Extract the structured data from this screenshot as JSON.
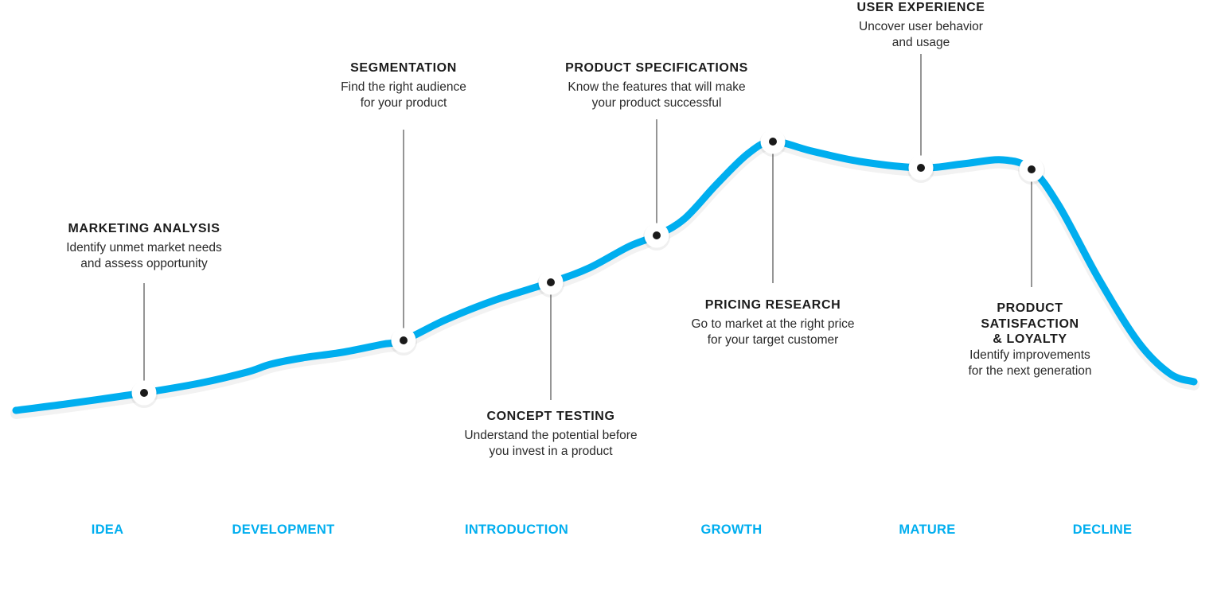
{
  "colors": {
    "curve": "#00aeef",
    "stage_label": "#00aeef",
    "text_dark": "#1c1c1c",
    "marker_dot": "#1a1a1a",
    "marker_halo": "#ffffff"
  },
  "milestones": [
    {
      "id": "marketing-analysis",
      "title": "MARKETING ANALYSIS",
      "desc_lines": [
        "Identify unmet market needs",
        "and assess opportunity"
      ]
    },
    {
      "id": "segmentation",
      "title": "SEGMENTATION",
      "desc_lines": [
        "Find the right audience",
        "for your product"
      ]
    },
    {
      "id": "concept-testing",
      "title": "CONCEPT TESTING",
      "desc_lines": [
        "Understand the potential before",
        "you invest in a product"
      ]
    },
    {
      "id": "product-specifications",
      "title": "PRODUCT SPECIFICATIONS",
      "desc_lines": [
        "Know the features that will make",
        "your product successful"
      ]
    },
    {
      "id": "pricing-research",
      "title": "PRICING RESEARCH",
      "desc_lines": [
        "Go to market at the right price",
        "for your target customer"
      ]
    },
    {
      "id": "user-experience",
      "title": "USER EXPERIENCE",
      "desc_lines": [
        "Uncover user behavior",
        "and usage"
      ]
    },
    {
      "id": "product-satisfaction",
      "title": "PRODUCT SATISFACTION & LOYALTY",
      "title_lines": [
        "PRODUCT",
        "SATISFACTION",
        "& LOYALTY"
      ],
      "desc_lines": [
        "Identify improvements",
        "for the next generation"
      ]
    }
  ],
  "stages": [
    "IDEA",
    "DEVELOPMENT",
    "INTRODUCTION",
    "GROWTH",
    "MATURE",
    "DECLINE"
  ]
}
